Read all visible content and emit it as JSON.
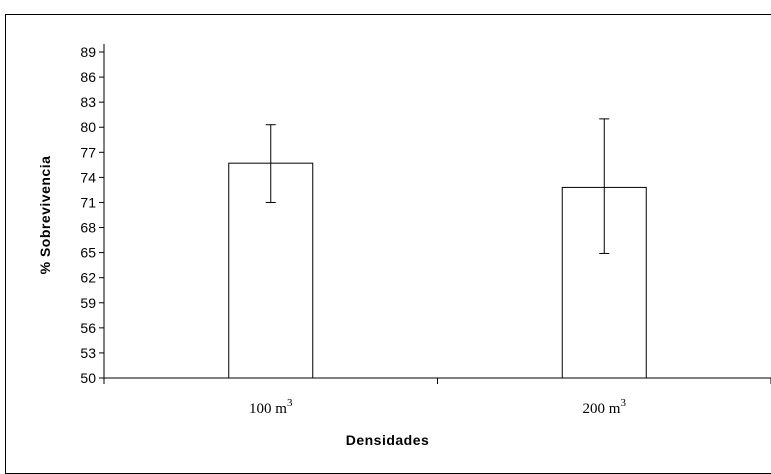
{
  "chart_data": {
    "type": "bar",
    "categories": [
      "100 m",
      "200 m"
    ],
    "category_superscript": "3",
    "values": [
      75.7,
      72.8
    ],
    "error_bars": [
      {
        "low": 71.0,
        "high": 80.3
      },
      {
        "low": 64.9,
        "high": 81.0
      }
    ],
    "xlabel": "Densidades",
    "ylabel": "% Sobrevivencia",
    "ylim": [
      50,
      89
    ],
    "yticks": [
      "50",
      "53",
      "56",
      "59",
      "62",
      "65",
      "68",
      "71",
      "74",
      "77",
      "80",
      "83",
      "86",
      "89"
    ],
    "grid": false,
    "bar_fill": "#ffffff",
    "bar_stroke": "#000000"
  }
}
